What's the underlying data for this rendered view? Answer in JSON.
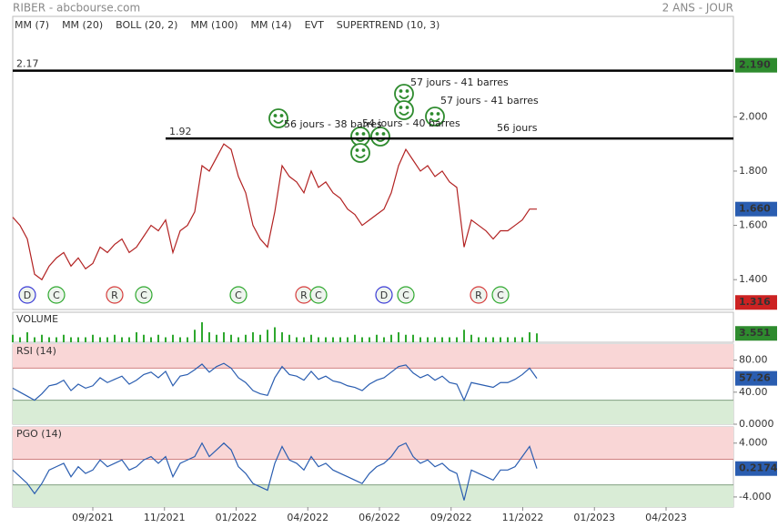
{
  "header": {
    "left": "RIBER - abcbourse.com",
    "right": "2 ANS - JOUR"
  },
  "legend": [
    {
      "name": "MM (7)",
      "color": "#3b3bd6"
    },
    {
      "name": "MM (20)",
      "color": "#d63b3b"
    },
    {
      "name": "BOLL (20, 2)",
      "color": "#f0a04b"
    },
    {
      "name": "MM (100)",
      "color": "#2ea82e"
    },
    {
      "name": "MM (14)",
      "color": "#555555"
    },
    {
      "name": "EVT",
      "color": "#222222"
    },
    {
      "name": "SUPERTREND (10, 3)",
      "color": "#a01e2a"
    }
  ],
  "x_labels": [
    "09/2021",
    "11/2021",
    "01/2022",
    "04/2022",
    "06/2022",
    "09/2022",
    "11/2022",
    "01/2023",
    "04/2023"
  ],
  "annotations": [
    "57 jours - 41 barres",
    "57 jours - 41 barres",
    "56 jours - 38 barres",
    "54 jours - 40 barres",
    "56 jours"
  ],
  "chart_data": [
    {
      "type": "line",
      "ylim": [
        1.29,
        2.37
      ],
      "yticks": [
        {
          "value": 1.4,
          "label": "1.400"
        },
        {
          "value": 1.6,
          "label": "1.600"
        },
        {
          "value": 1.8,
          "label": "1.800"
        },
        {
          "value": 2.0,
          "label": "2.000"
        }
      ],
      "series": [
        {
          "color": "#b22222",
          "values": [
            1.63,
            1.6,
            1.55,
            1.42,
            1.4,
            1.45,
            1.48,
            1.5,
            1.45,
            1.48,
            1.44,
            1.46,
            1.52,
            1.5,
            1.53,
            1.55,
            1.5,
            1.52,
            1.56,
            1.6,
            1.58,
            1.62,
            1.5,
            1.58,
            1.6,
            1.65,
            1.82,
            1.8,
            1.85,
            1.9,
            1.88,
            1.78,
            1.72,
            1.6,
            1.55,
            1.52,
            1.65,
            1.82,
            1.78,
            1.76,
            1.72,
            1.8,
            1.74,
            1.76,
            1.72,
            1.7,
            1.66,
            1.64,
            1.6,
            1.62,
            1.64,
            1.66,
            1.72,
            1.82,
            1.88,
            1.84,
            1.8,
            1.82,
            1.78,
            1.8,
            1.76,
            1.74,
            1.52,
            1.62,
            1.6,
            1.58,
            1.55,
            1.58,
            1.58,
            1.6,
            1.62,
            1.66,
            1.66
          ],
          "value_labels": {
            "72": "1.660"
          }
        }
      ],
      "levels": [
        {
          "value": 2.17,
          "start": 0
        },
        {
          "value": 1.92,
          "start": 21
        }
      ],
      "markers": [
        {
          "value": 2.19,
          "label": "2.190",
          "color": "#2e8b2e"
        },
        {
          "value": 1.316,
          "label": "1.316",
          "color": "#cc2222"
        }
      ],
      "events": [
        {
          "label": "D",
          "at": 2
        },
        {
          "label": "C",
          "at": 6
        },
        {
          "label": "R",
          "at": 14
        },
        {
          "label": "C",
          "at": 18
        },
        {
          "label": "C",
          "at": 31
        },
        {
          "label": "R",
          "at": 40
        },
        {
          "label": "C",
          "at": 42
        },
        {
          "label": "D",
          "at": 51
        },
        {
          "label": "C",
          "at": 54
        },
        {
          "label": "R",
          "at": 64
        },
        {
          "label": "C",
          "at": 67
        }
      ]
    },
    {
      "type": "bar",
      "title": "VOLUME",
      "title_color": "#2ea82e",
      "ylim": [
        0,
        12
      ],
      "box_color": "#2e8b2e",
      "series": [
        {
          "color": "#2ea82e",
          "values": [
            3,
            2,
            4,
            2,
            3,
            2,
            2,
            3,
            2,
            2,
            2,
            3,
            2,
            2,
            3,
            2,
            2,
            4,
            3,
            2,
            3,
            2,
            3,
            2,
            2,
            5,
            8,
            4,
            3,
            4,
            3,
            2,
            3,
            4,
            3,
            5,
            6,
            4,
            3,
            2,
            2,
            3,
            2,
            2,
            2,
            2,
            2,
            3,
            2,
            2,
            3,
            2,
            3,
            4,
            3,
            3,
            2,
            2,
            2,
            2,
            2,
            2,
            5,
            3,
            2,
            2,
            2,
            2,
            2,
            2,
            2,
            4,
            3.551
          ]
        }
      ]
    },
    {
      "type": "line",
      "title": "RSI (14)",
      "title_color": "#2a5db0",
      "ylim": [
        0,
        100
      ],
      "bands": [
        30,
        70
      ],
      "box_color": "#2a5db0",
      "yticks": [
        {
          "value": 0,
          "label": "0.0000"
        },
        {
          "value": 40,
          "label": "40.00"
        },
        {
          "value": 80,
          "label": "80.00"
        }
      ],
      "series": [
        {
          "color": "#2a5db0",
          "values": [
            45,
            40,
            35,
            30,
            38,
            48,
            50,
            55,
            42,
            50,
            45,
            48,
            58,
            52,
            56,
            60,
            50,
            55,
            62,
            65,
            58,
            66,
            48,
            60,
            62,
            68,
            75,
            65,
            72,
            76,
            70,
            58,
            52,
            42,
            38,
            36,
            58,
            72,
            62,
            60,
            55,
            66,
            56,
            60,
            54,
            52,
            48,
            46,
            42,
            50,
            55,
            58,
            65,
            72,
            74,
            64,
            58,
            62,
            55,
            60,
            52,
            50,
            30,
            52,
            50,
            48,
            46,
            52,
            52,
            56,
            62,
            70,
            57.26
          ]
        }
      ]
    },
    {
      "type": "line",
      "title": "PGO (14)",
      "title_color": "#2a5db0",
      "ylim": [
        -5.5,
        6.4
      ],
      "bands": [
        -2.2,
        1.6
      ],
      "box_color": "#2a5db0",
      "yticks": [
        {
          "value": -4,
          "label": "-4.000"
        },
        {
          "value": 4,
          "label": "4.000"
        }
      ],
      "series": [
        {
          "color": "#2a5db0",
          "values": [
            0,
            -1,
            -2,
            -3.5,
            -2,
            0,
            0.5,
            1,
            -1,
            0.5,
            -0.5,
            0,
            1.5,
            0.5,
            1,
            1.5,
            0,
            0.5,
            1.5,
            2,
            1,
            2,
            -1,
            1,
            1.5,
            2,
            4,
            2,
            3,
            4,
            3,
            0.5,
            -0.5,
            -2,
            -2.5,
            -3,
            1,
            3.5,
            1.5,
            1,
            0,
            2,
            0.5,
            1,
            0,
            -0.5,
            -1,
            -1.5,
            -2,
            -0.5,
            0.5,
            1,
            2,
            3.5,
            4,
            2,
            1,
            1.5,
            0.5,
            1,
            0,
            -0.5,
            -4.5,
            0,
            -0.5,
            -1,
            -1.5,
            0,
            0,
            0.5,
            2,
            3.5,
            0.2174
          ]
        }
      ]
    }
  ]
}
